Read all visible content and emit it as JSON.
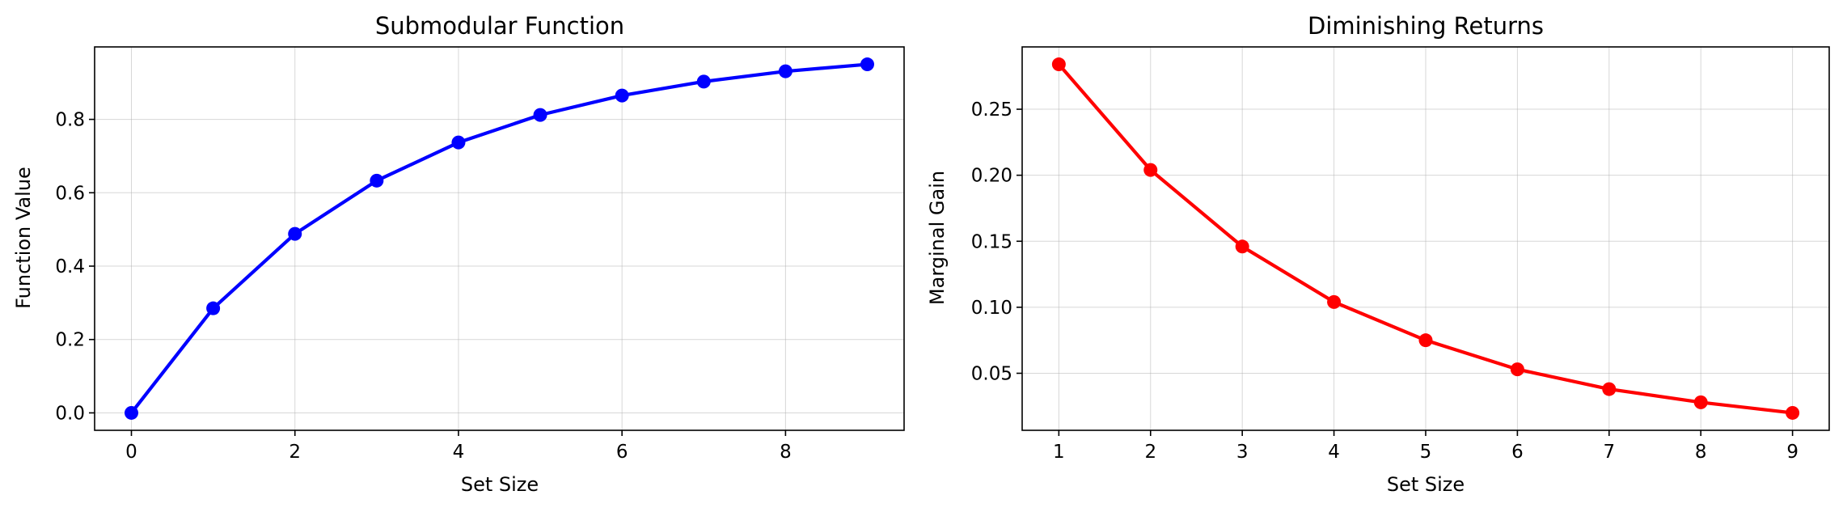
{
  "chart_data": [
    {
      "type": "line",
      "title": "Submodular Function",
      "xlabel": "Set Size",
      "ylabel": "Function Value",
      "x": [
        0,
        1,
        2,
        3,
        4,
        5,
        6,
        7,
        8,
        9
      ],
      "series": [
        {
          "values": [
            0.0,
            0.285,
            0.488,
            0.633,
            0.737,
            0.812,
            0.865,
            0.903,
            0.931,
            0.95
          ],
          "color": "#0000ff"
        }
      ],
      "xlim": [
        -0.45,
        9.45
      ],
      "ylim": [
        -0.0475,
        0.9975
      ],
      "xticks": [
        0,
        2,
        4,
        6,
        8
      ],
      "yticks": [
        0.0,
        0.2,
        0.4,
        0.6,
        0.8
      ],
      "xtick_labels": [
        "0",
        "2",
        "4",
        "6",
        "8"
      ],
      "ytick_labels": [
        "0.0",
        "0.2",
        "0.4",
        "0.6",
        "0.8"
      ],
      "grid": true
    },
    {
      "type": "line",
      "title": "Diminishing Returns",
      "xlabel": "Set Size",
      "ylabel": "Marginal Gain",
      "x": [
        1,
        2,
        3,
        4,
        5,
        6,
        7,
        8,
        9
      ],
      "series": [
        {
          "values": [
            0.284,
            0.204,
            0.146,
            0.104,
            0.075,
            0.053,
            0.038,
            0.028,
            0.02
          ],
          "color": "#ff0000"
        }
      ],
      "xlim": [
        0.6,
        9.4
      ],
      "ylim": [
        0.0068,
        0.2972
      ],
      "xticks": [
        1,
        2,
        3,
        4,
        5,
        6,
        7,
        8,
        9
      ],
      "yticks": [
        0.05,
        0.1,
        0.15,
        0.2,
        0.25
      ],
      "xtick_labels": [
        "1",
        "2",
        "3",
        "4",
        "5",
        "6",
        "7",
        "8",
        "9"
      ],
      "ytick_labels": [
        "0.05",
        "0.10",
        "0.15",
        "0.20",
        "0.25"
      ],
      "grid": true
    }
  ]
}
